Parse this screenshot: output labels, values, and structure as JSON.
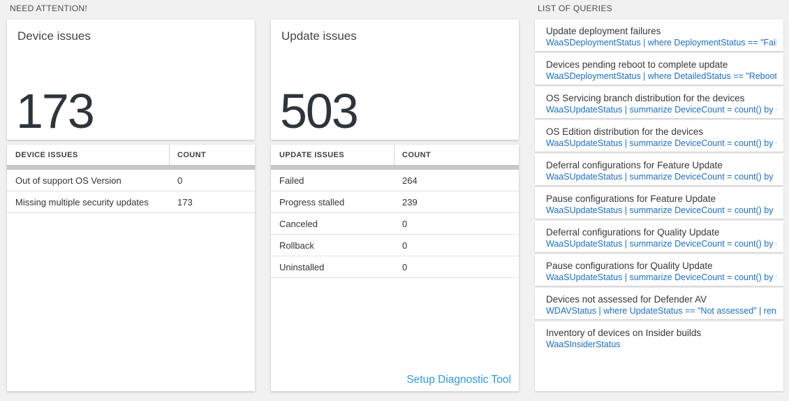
{
  "colors": {
    "background": "#f1f1f1",
    "query_link_blue": "#1a6fc4",
    "setup_link_blue": "#2b99d9",
    "big_number": "#2e343a",
    "header_bar_gray": "#c7c7c9"
  },
  "sections": {
    "need_attention": "NEED ATTENTION!",
    "list_of_queries": "LIST OF QUERIES"
  },
  "device_issues": {
    "tile_title": "Device issues",
    "tile_value": "173",
    "table": {
      "headers": [
        "DEVICE ISSUES",
        "COUNT"
      ],
      "rows": [
        {
          "label": "Out of support OS Version",
          "count": "0"
        },
        {
          "label": "Missing multiple security updates",
          "count": "173"
        }
      ]
    }
  },
  "update_issues": {
    "tile_title": "Update issues",
    "tile_value": "503",
    "table": {
      "headers": [
        "UPDATE ISSUES",
        "COUNT"
      ],
      "rows": [
        {
          "label": "Failed",
          "count": "264"
        },
        {
          "label": "Progress stalled",
          "count": "239"
        },
        {
          "label": "Canceled",
          "count": "0"
        },
        {
          "label": "Rollback",
          "count": "0"
        },
        {
          "label": "Uninstalled",
          "count": "0"
        }
      ]
    },
    "setup_link": "Setup Diagnostic Tool"
  },
  "queries": [
    {
      "title": "Update deployment failures",
      "query": "WaaSDeploymentStatus | where DeploymentStatus == \"Failed\" |..."
    },
    {
      "title": "Devices pending reboot to complete update",
      "query": "WaaSDeploymentStatus | where DetailedStatus == \"Reboot pend..."
    },
    {
      "title": "OS Servicing branch distribution for the devices",
      "query": "WaaSUpdateStatus | summarize DeviceCount = count() by OSSer..."
    },
    {
      "title": "OS Edition distribution for the devices",
      "query": "WaaSUpdateStatus | summarize DeviceCount = count() by OSEdit..."
    },
    {
      "title": "Deferral configurations for Feature Update",
      "query": "WaaSUpdateStatus | summarize DeviceCount = count() by Featur..."
    },
    {
      "title": "Pause configurations for Feature Update",
      "query": "WaaSUpdateStatus | summarize DeviceCount = count() by Featur..."
    },
    {
      "title": "Deferral configurations for Quality Update",
      "query": "WaaSUpdateStatus | summarize DeviceCount = count() by Qualit..."
    },
    {
      "title": "Pause configurations for Quality Update",
      "query": "WaaSUpdateStatus | summarize DeviceCount = count() by Qualit..."
    },
    {
      "title": "Devices not assessed for Defender AV",
      "query": "WDAVStatus | where UpdateStatus == \"Not assessed\" | render ta..."
    },
    {
      "title": "Inventory of devices on Insider builds",
      "query": "WaaSInsiderStatus"
    }
  ]
}
